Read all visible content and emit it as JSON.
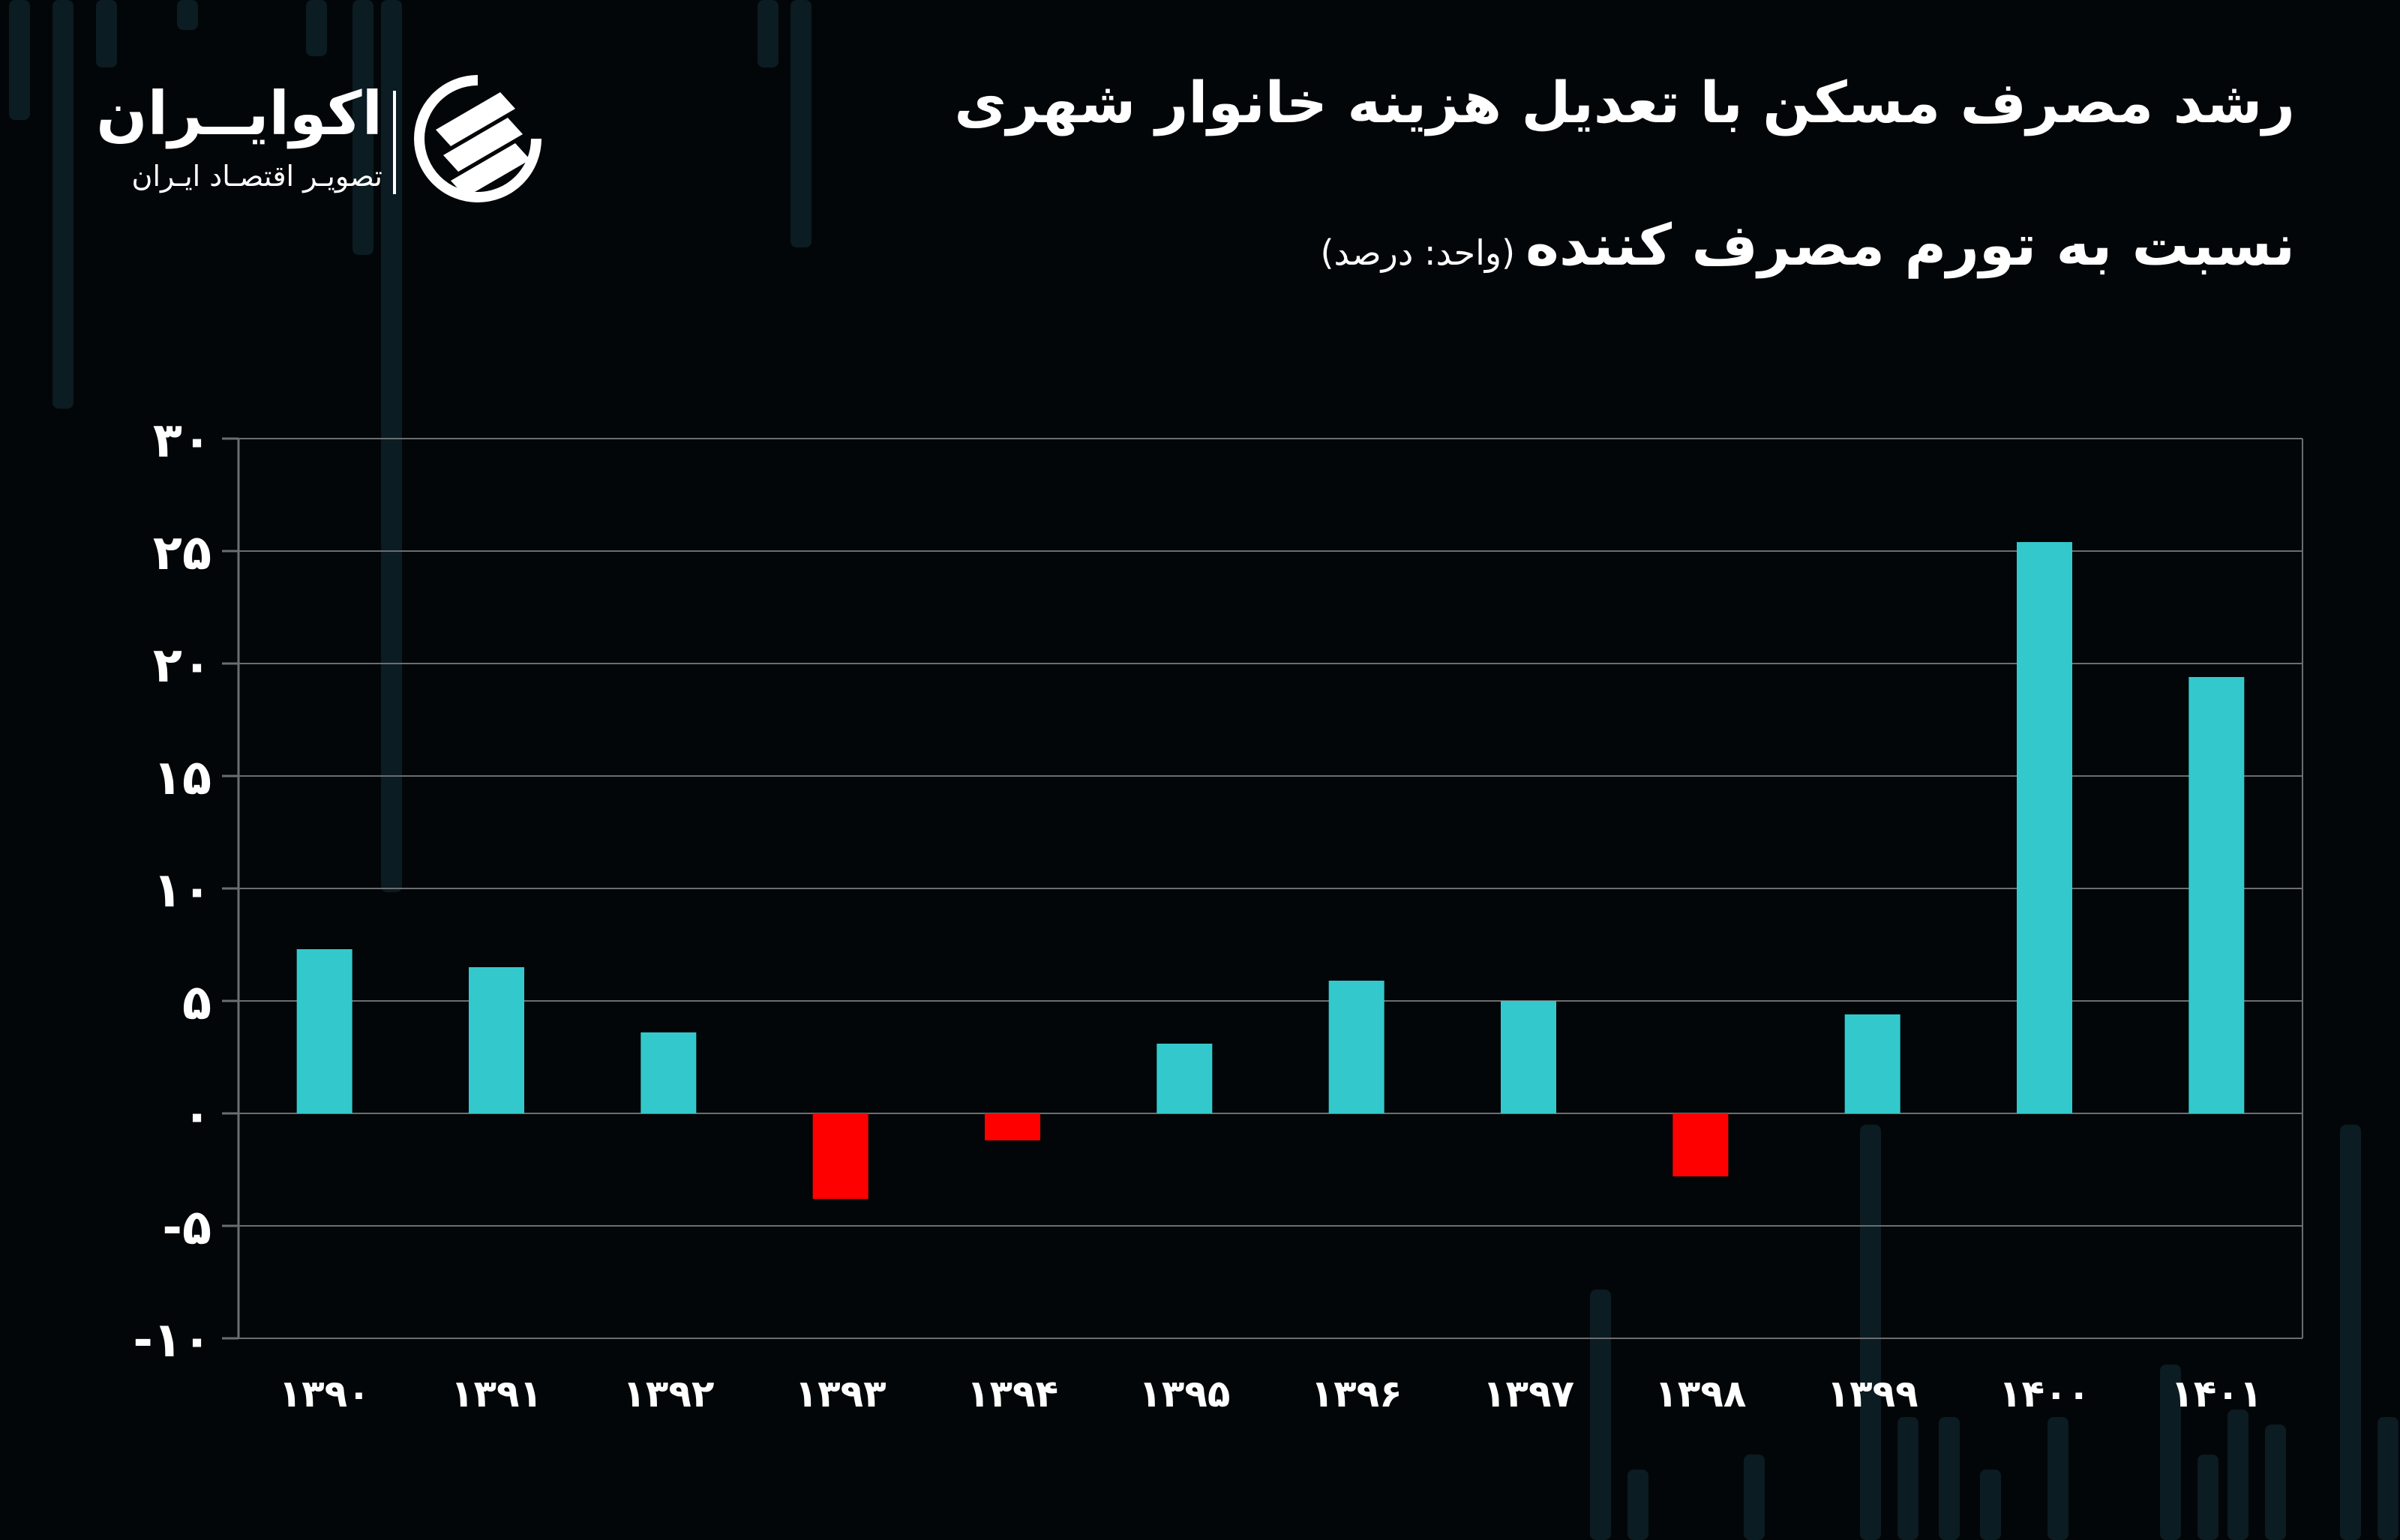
{
  "title_line1": "رشد مصرف مسکن با تعدیل هزینه خانوار شهری",
  "title_line2": "نسبت به تورم مصرف کننده",
  "unit_label": "(واحد: درصد)",
  "logo": {
    "name": "اکوایــران",
    "tagline": "تصویـر اقتصـاد ایـران",
    "mark_icon": "ecoiran-logo-icon"
  },
  "colors": {
    "background": "#030608",
    "positive_bar": "#33c9cc",
    "negative_bar": "#ff0000",
    "text": "#ffffff",
    "grid": "#6b6e70"
  },
  "chart_data": {
    "type": "bar",
    "categories": [
      "۱۳۹۰",
      "۱۳۹۱",
      "۱۳۹۲",
      "۱۳۹۳",
      "۱۳۹۴",
      "۱۳۹۵",
      "۱۳۹۶",
      "۱۳۹۷",
      "۱۳۹۸",
      "۱۳۹۹",
      "۱۴۰۰",
      "۱۴۰۱"
    ],
    "values": [
      7.3,
      6.5,
      3.6,
      -3.8,
      -1.2,
      3.1,
      5.9,
      5.0,
      -2.8,
      4.4,
      25.4,
      19.4
    ],
    "ylim": [
      -10,
      30
    ],
    "yticks": [
      30,
      25,
      20,
      15,
      10,
      5,
      0,
      -5,
      -10
    ],
    "ytick_labels": [
      "۳۰",
      "۲۵",
      "۲۰",
      "۱۵",
      "۱۰",
      "۵",
      "۰",
      "-۵",
      "-۱۰"
    ],
    "grid": true,
    "legend": "none",
    "title": "",
    "xlabel": "",
    "ylabel": ""
  }
}
